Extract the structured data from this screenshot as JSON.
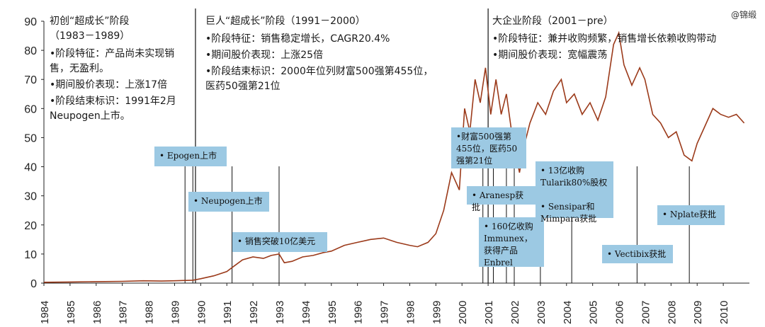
{
  "watermark": "@锦缎",
  "colors": {
    "line": "#9b3a1a",
    "axis": "#222222",
    "box": "#9cc9e3"
  },
  "phases": [
    {
      "title": "初创“超成长”阶段\n（1983－1989）",
      "lines": [
        "•阶段特征：产品尚未实现销售，无盈利。",
        "•期间股价表现：上涨17倍",
        "•阶段结束标识：1991年2月Neupogen上市。"
      ]
    },
    {
      "title": "巨人“超成长”阶段（1991－2000）",
      "lines": [
        "•阶段特征：销售稳定增长，CAGR20.4%",
        "•期间股价表现：上涨25倍",
        "•阶段结束标识：2000年位列财富500强第455位，医药50强第21位"
      ]
    },
    {
      "title": "大企业阶段（2001－pre）",
      "lines": [
        "•阶段特征：兼并收购频繁，销售增长依赖收购带动",
        "•期间股价表现：宽幅震荡"
      ]
    }
  ],
  "events": [
    {
      "text": "• Epogen上市"
    },
    {
      "text": "• Neupogen上市"
    },
    {
      "text": "• 销售突破10亿美元"
    },
    {
      "text": "•财富500强第\n455位，医药50\n强第21位"
    },
    {
      "text": "• Aranesp获批"
    },
    {
      "text": "• 160亿收购\nImmunex，\n获得产品\nEnbrel"
    },
    {
      "text": "• 13亿收购\nTularik80%股权\n\n• Sensipar和\nMimpara获批"
    },
    {
      "text": "• Vectibix获批"
    },
    {
      "text": "• Nplate获批"
    }
  ],
  "chart_data": {
    "type": "line",
    "title": "",
    "xlabel": "",
    "ylabel": "",
    "ylim": [
      0,
      90
    ],
    "xlim": [
      1984,
      2011
    ],
    "yticks": [
      "0",
      "10",
      "20",
      "30",
      "40",
      "50",
      "60",
      "70",
      "80",
      "90"
    ],
    "xticks": [
      "1984",
      "1985",
      "1986",
      "1987",
      "1988",
      "1989",
      "1990",
      "1991",
      "1992",
      "1993",
      "1994",
      "1995",
      "1996",
      "1997",
      "1998",
      "1999",
      "2000",
      "2001",
      "2002",
      "2003",
      "2004",
      "2005",
      "2006",
      "2007",
      "2008",
      "2009",
      "2010"
    ],
    "grid": false,
    "phase_dividers": [
      1989.8,
      2001.0
    ],
    "event_dates": [
      1989.4,
      1989.7,
      1991.2,
      1993.0,
      2000.8,
      2001.2,
      2001.7,
      2002.0,
      2003.0,
      2004.2,
      2006.7,
      2008.7
    ],
    "x": [
      1984.0,
      1985.0,
      1986.0,
      1987.0,
      1987.8,
      1988.5,
      1989.0,
      1989.7,
      1990.0,
      1990.5,
      1991.0,
      1991.3,
      1991.6,
      1992.0,
      1992.4,
      1992.7,
      1993.0,
      1993.2,
      1993.5,
      1993.9,
      1994.3,
      1994.7,
      1995.0,
      1995.5,
      1996.0,
      1996.5,
      1997.0,
      1997.5,
      1998.0,
      1998.3,
      1998.7,
      1999.0,
      1999.3,
      1999.6,
      1999.9,
      2000.1,
      2000.3,
      2000.5,
      2000.7,
      2000.9,
      2001.1,
      2001.3,
      2001.5,
      2001.7,
      2001.9,
      2002.2,
      2002.4,
      2002.6,
      2002.9,
      2003.2,
      2003.5,
      2003.8,
      2004.0,
      2004.3,
      2004.6,
      2004.9,
      2005.2,
      2005.5,
      2005.8,
      2006.0,
      2006.2,
      2006.5,
      2006.8,
      2007.0,
      2007.3,
      2007.6,
      2007.9,
      2008.2,
      2008.5,
      2008.8,
      2009.0,
      2009.3,
      2009.6,
      2009.9,
      2010.2,
      2010.5,
      2010.8
    ],
    "y": [
      0.3,
      0.4,
      0.5,
      0.6,
      0.8,
      0.7,
      0.8,
      1.0,
      1.5,
      2.5,
      4.0,
      6.0,
      8.0,
      9.0,
      8.5,
      9.5,
      10.0,
      7.0,
      7.5,
      9.0,
      9.5,
      10.5,
      11.0,
      13.0,
      14.0,
      15.0,
      15.5,
      14.0,
      13.0,
      12.5,
      14.0,
      17.0,
      25.0,
      38.0,
      32.0,
      60.0,
      52.0,
      70.0,
      62.0,
      74.0,
      58.0,
      70.0,
      58.0,
      65.0,
      52.0,
      38.0,
      48.0,
      55.0,
      62.0,
      58.0,
      66.0,
      70.0,
      62.0,
      65.0,
      58.0,
      62.0,
      56.0,
      64.0,
      82.0,
      86.0,
      75.0,
      68.0,
      74.0,
      70.0,
      58.0,
      55.0,
      50.0,
      52.0,
      44.0,
      42.0,
      48.0,
      54.0,
      60.0,
      58.0,
      57.0,
      58.0,
      55.0
    ]
  }
}
